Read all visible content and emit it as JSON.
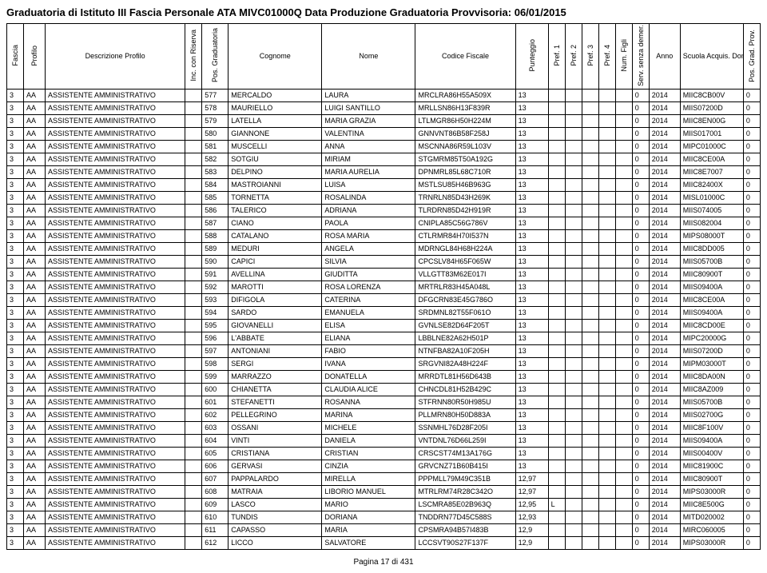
{
  "title": "Graduatoria di Istituto III Fascia Personale ATA MIVC01000Q Data Produzione Graduatoria Provvisoria: 06/01/2015",
  "footer": "Pagina 17 di 431",
  "headers": {
    "fascia": "Fascia",
    "profilo": "Profilo",
    "desc": "Descrizione Profilo",
    "inc": "Inc. con Riserva",
    "pos": "Pos. Graduatoria",
    "cognome": "Cognome",
    "nome": "Nome",
    "cf": "Codice Fiscale",
    "punt": "Punteggio",
    "pref1": "Pref. 1",
    "pref2": "Pref. 2",
    "pref3": "Pref. 3",
    "pref4": "Pref. 4",
    "numf": "Num. Figli",
    "serv": "Serv. senza demer.",
    "anno": "Anno",
    "scuola": "Scuola Acquis. Domanda",
    "posgrad": "Pos. Grad. Prov."
  },
  "rows": [
    {
      "fascia": "3",
      "profilo": "AA",
      "desc": "ASSISTENTE AMMINISTRATIVO",
      "inc": "",
      "pos": "577",
      "cognome": "MERCALDO",
      "nome": "LAURA",
      "cf": "MRCLRA86H55A509X",
      "punt": "13",
      "p1": "",
      "p2": "",
      "p3": "",
      "p4": "",
      "nf": "",
      "sv": "0",
      "anno": "2014",
      "scuola": "MIIC8CB00V",
      "pg": "0"
    },
    {
      "fascia": "3",
      "profilo": "AA",
      "desc": "ASSISTENTE AMMINISTRATIVO",
      "inc": "",
      "pos": "578",
      "cognome": "MAURIELLO",
      "nome": "LUIGI SANTILLO",
      "cf": "MRLLSN86H13F839R",
      "punt": "13",
      "p1": "",
      "p2": "",
      "p3": "",
      "p4": "",
      "nf": "",
      "sv": "0",
      "anno": "2014",
      "scuola": "MIIS07200D",
      "pg": "0"
    },
    {
      "fascia": "3",
      "profilo": "AA",
      "desc": "ASSISTENTE AMMINISTRATIVO",
      "inc": "",
      "pos": "579",
      "cognome": "LATELLA",
      "nome": "MARIA GRAZIA",
      "cf": "LTLMGR86H50H224M",
      "punt": "13",
      "p1": "",
      "p2": "",
      "p3": "",
      "p4": "",
      "nf": "",
      "sv": "0",
      "anno": "2014",
      "scuola": "MIIC8EN00G",
      "pg": "0"
    },
    {
      "fascia": "3",
      "profilo": "AA",
      "desc": "ASSISTENTE AMMINISTRATIVO",
      "inc": "",
      "pos": "580",
      "cognome": "GIANNONE",
      "nome": "VALENTINA",
      "cf": "GNNVNT86B58F258J",
      "punt": "13",
      "p1": "",
      "p2": "",
      "p3": "",
      "p4": "",
      "nf": "",
      "sv": "0",
      "anno": "2014",
      "scuola": "MIIS017001",
      "pg": "0"
    },
    {
      "fascia": "3",
      "profilo": "AA",
      "desc": "ASSISTENTE AMMINISTRATIVO",
      "inc": "",
      "pos": "581",
      "cognome": "MUSCELLI",
      "nome": "ANNA",
      "cf": "MSCNNA86R59L103V",
      "punt": "13",
      "p1": "",
      "p2": "",
      "p3": "",
      "p4": "",
      "nf": "",
      "sv": "0",
      "anno": "2014",
      "scuola": "MIPC01000C",
      "pg": "0"
    },
    {
      "fascia": "3",
      "profilo": "AA",
      "desc": "ASSISTENTE AMMINISTRATIVO",
      "inc": "",
      "pos": "582",
      "cognome": "SOTGIU",
      "nome": "MIRIAM",
      "cf": "STGMRM85T50A192G",
      "punt": "13",
      "p1": "",
      "p2": "",
      "p3": "",
      "p4": "",
      "nf": "",
      "sv": "0",
      "anno": "2014",
      "scuola": "MIIC8CE00A",
      "pg": "0"
    },
    {
      "fascia": "3",
      "profilo": "AA",
      "desc": "ASSISTENTE AMMINISTRATIVO",
      "inc": "",
      "pos": "583",
      "cognome": "DELPINO",
      "nome": "MARIA AURELIA",
      "cf": "DPNMRL85L68C710R",
      "punt": "13",
      "p1": "",
      "p2": "",
      "p3": "",
      "p4": "",
      "nf": "",
      "sv": "0",
      "anno": "2014",
      "scuola": "MIIC8E7007",
      "pg": "0"
    },
    {
      "fascia": "3",
      "profilo": "AA",
      "desc": "ASSISTENTE AMMINISTRATIVO",
      "inc": "",
      "pos": "584",
      "cognome": "MASTROIANNI",
      "nome": "LUISA",
      "cf": "MSTLSU85H46B963G",
      "punt": "13",
      "p1": "",
      "p2": "",
      "p3": "",
      "p4": "",
      "nf": "",
      "sv": "0",
      "anno": "2014",
      "scuola": "MIIC82400X",
      "pg": "0"
    },
    {
      "fascia": "3",
      "profilo": "AA",
      "desc": "ASSISTENTE AMMINISTRATIVO",
      "inc": "",
      "pos": "585",
      "cognome": "TORNETTA",
      "nome": "ROSALINDA",
      "cf": "TRNRLN85D43H269K",
      "punt": "13",
      "p1": "",
      "p2": "",
      "p3": "",
      "p4": "",
      "nf": "",
      "sv": "0",
      "anno": "2014",
      "scuola": "MISL01000C",
      "pg": "0"
    },
    {
      "fascia": "3",
      "profilo": "AA",
      "desc": "ASSISTENTE AMMINISTRATIVO",
      "inc": "",
      "pos": "586",
      "cognome": "TALERICO",
      "nome": "ADRIANA",
      "cf": "TLRDRN85D42H919R",
      "punt": "13",
      "p1": "",
      "p2": "",
      "p3": "",
      "p4": "",
      "nf": "",
      "sv": "0",
      "anno": "2014",
      "scuola": "MIIS074005",
      "pg": "0"
    },
    {
      "fascia": "3",
      "profilo": "AA",
      "desc": "ASSISTENTE AMMINISTRATIVO",
      "inc": "",
      "pos": "587",
      "cognome": "CIANO",
      "nome": "PAOLA",
      "cf": "CNIPLA85C56G786V",
      "punt": "13",
      "p1": "",
      "p2": "",
      "p3": "",
      "p4": "",
      "nf": "",
      "sv": "0",
      "anno": "2014",
      "scuola": "MIIS082004",
      "pg": "0"
    },
    {
      "fascia": "3",
      "profilo": "AA",
      "desc": "ASSISTENTE AMMINISTRATIVO",
      "inc": "",
      "pos": "588",
      "cognome": "CATALANO",
      "nome": "ROSA MARIA",
      "cf": "CTLRMR84H70I537N",
      "punt": "13",
      "p1": "",
      "p2": "",
      "p3": "",
      "p4": "",
      "nf": "",
      "sv": "0",
      "anno": "2014",
      "scuola": "MIPS08000T",
      "pg": "0"
    },
    {
      "fascia": "3",
      "profilo": "AA",
      "desc": "ASSISTENTE AMMINISTRATIVO",
      "inc": "",
      "pos": "589",
      "cognome": "MEDURI",
      "nome": "ANGELA",
      "cf": "MDRNGL84H68H224A",
      "punt": "13",
      "p1": "",
      "p2": "",
      "p3": "",
      "p4": "",
      "nf": "",
      "sv": "0",
      "anno": "2014",
      "scuola": "MIIC8DD005",
      "pg": "0"
    },
    {
      "fascia": "3",
      "profilo": "AA",
      "desc": "ASSISTENTE AMMINISTRATIVO",
      "inc": "",
      "pos": "590",
      "cognome": "CAPICI",
      "nome": "SILVIA",
      "cf": "CPCSLV84H65F065W",
      "punt": "13",
      "p1": "",
      "p2": "",
      "p3": "",
      "p4": "",
      "nf": "",
      "sv": "0",
      "anno": "2014",
      "scuola": "MIIS05700B",
      "pg": "0"
    },
    {
      "fascia": "3",
      "profilo": "AA",
      "desc": "ASSISTENTE AMMINISTRATIVO",
      "inc": "",
      "pos": "591",
      "cognome": "AVELLINA",
      "nome": "GIUDITTA",
      "cf": "VLLGTT83M62E017I",
      "punt": "13",
      "p1": "",
      "p2": "",
      "p3": "",
      "p4": "",
      "nf": "",
      "sv": "0",
      "anno": "2014",
      "scuola": "MIIC80900T",
      "pg": "0"
    },
    {
      "fascia": "3",
      "profilo": "AA",
      "desc": "ASSISTENTE AMMINISTRATIVO",
      "inc": "",
      "pos": "592",
      "cognome": "MAROTTI",
      "nome": "ROSA LORENZA",
      "cf": "MRTRLR83H45A048L",
      "punt": "13",
      "p1": "",
      "p2": "",
      "p3": "",
      "p4": "",
      "nf": "",
      "sv": "0",
      "anno": "2014",
      "scuola": "MIIS09400A",
      "pg": "0"
    },
    {
      "fascia": "3",
      "profilo": "AA",
      "desc": "ASSISTENTE AMMINISTRATIVO",
      "inc": "",
      "pos": "593",
      "cognome": "DIFIGOLA",
      "nome": "CATERINA",
      "cf": "DFGCRN83E45G786O",
      "punt": "13",
      "p1": "",
      "p2": "",
      "p3": "",
      "p4": "",
      "nf": "",
      "sv": "0",
      "anno": "2014",
      "scuola": "MIIC8CE00A",
      "pg": "0"
    },
    {
      "fascia": "3",
      "profilo": "AA",
      "desc": "ASSISTENTE AMMINISTRATIVO",
      "inc": "",
      "pos": "594",
      "cognome": "SARDO",
      "nome": "EMANUELA",
      "cf": "SRDMNL82T55F061O",
      "punt": "13",
      "p1": "",
      "p2": "",
      "p3": "",
      "p4": "",
      "nf": "",
      "sv": "0",
      "anno": "2014",
      "scuola": "MIIS09400A",
      "pg": "0"
    },
    {
      "fascia": "3",
      "profilo": "AA",
      "desc": "ASSISTENTE AMMINISTRATIVO",
      "inc": "",
      "pos": "595",
      "cognome": "GIOVANELLI",
      "nome": "ELISA",
      "cf": "GVNLSE82D64F205T",
      "punt": "13",
      "p1": "",
      "p2": "",
      "p3": "",
      "p4": "",
      "nf": "",
      "sv": "0",
      "anno": "2014",
      "scuola": "MIIC8CD00E",
      "pg": "0"
    },
    {
      "fascia": "3",
      "profilo": "AA",
      "desc": "ASSISTENTE AMMINISTRATIVO",
      "inc": "",
      "pos": "596",
      "cognome": "L'ABBATE",
      "nome": "ELIANA",
      "cf": "LBBLNE82A62H501P",
      "punt": "13",
      "p1": "",
      "p2": "",
      "p3": "",
      "p4": "",
      "nf": "",
      "sv": "0",
      "anno": "2014",
      "scuola": "MIPC20000G",
      "pg": "0"
    },
    {
      "fascia": "3",
      "profilo": "AA",
      "desc": "ASSISTENTE AMMINISTRATIVO",
      "inc": "",
      "pos": "597",
      "cognome": "ANTONIANI",
      "nome": "FABIO",
      "cf": "NTNFBA82A10F205H",
      "punt": "13",
      "p1": "",
      "p2": "",
      "p3": "",
      "p4": "",
      "nf": "",
      "sv": "0",
      "anno": "2014",
      "scuola": "MIIS07200D",
      "pg": "0"
    },
    {
      "fascia": "3",
      "profilo": "AA",
      "desc": "ASSISTENTE AMMINISTRATIVO",
      "inc": "",
      "pos": "598",
      "cognome": "SERGI",
      "nome": "IVANA",
      "cf": "SRGVNI82A48H224F",
      "punt": "13",
      "p1": "",
      "p2": "",
      "p3": "",
      "p4": "",
      "nf": "",
      "sv": "0",
      "anno": "2014",
      "scuola": "MIPM03000T",
      "pg": "0"
    },
    {
      "fascia": "3",
      "profilo": "AA",
      "desc": "ASSISTENTE AMMINISTRATIVO",
      "inc": "",
      "pos": "599",
      "cognome": "MARRAZZO",
      "nome": "DONATELLA",
      "cf": "MRRDTL81H56D643B",
      "punt": "13",
      "p1": "",
      "p2": "",
      "p3": "",
      "p4": "",
      "nf": "",
      "sv": "0",
      "anno": "2014",
      "scuola": "MIIC8DA00N",
      "pg": "0"
    },
    {
      "fascia": "3",
      "profilo": "AA",
      "desc": "ASSISTENTE AMMINISTRATIVO",
      "inc": "",
      "pos": "600",
      "cognome": "CHIANETTA",
      "nome": "CLAUDIA ALICE",
      "cf": "CHNCDL81H52B429C",
      "punt": "13",
      "p1": "",
      "p2": "",
      "p3": "",
      "p4": "",
      "nf": "",
      "sv": "0",
      "anno": "2014",
      "scuola": "MIIC8AZ009",
      "pg": "0"
    },
    {
      "fascia": "3",
      "profilo": "AA",
      "desc": "ASSISTENTE AMMINISTRATIVO",
      "inc": "",
      "pos": "601",
      "cognome": "STEFANETTI",
      "nome": "ROSANNA",
      "cf": "STFRNN80R50H985U",
      "punt": "13",
      "p1": "",
      "p2": "",
      "p3": "",
      "p4": "",
      "nf": "",
      "sv": "0",
      "anno": "2014",
      "scuola": "MIIS05700B",
      "pg": "0"
    },
    {
      "fascia": "3",
      "profilo": "AA",
      "desc": "ASSISTENTE AMMINISTRATIVO",
      "inc": "",
      "pos": "602",
      "cognome": "PELLEGRINO",
      "nome": "MARINA",
      "cf": "PLLMRN80H50D883A",
      "punt": "13",
      "p1": "",
      "p2": "",
      "p3": "",
      "p4": "",
      "nf": "",
      "sv": "0",
      "anno": "2014",
      "scuola": "MIIS02700G",
      "pg": "0"
    },
    {
      "fascia": "3",
      "profilo": "AA",
      "desc": "ASSISTENTE AMMINISTRATIVO",
      "inc": "",
      "pos": "603",
      "cognome": "OSSANI",
      "nome": "MICHELE",
      "cf": "SSNMHL76D28F205I",
      "punt": "13",
      "p1": "",
      "p2": "",
      "p3": "",
      "p4": "",
      "nf": "",
      "sv": "0",
      "anno": "2014",
      "scuola": "MIIC8F100V",
      "pg": "0"
    },
    {
      "fascia": "3",
      "profilo": "AA",
      "desc": "ASSISTENTE AMMINISTRATIVO",
      "inc": "",
      "pos": "604",
      "cognome": "VINTI",
      "nome": "DANIELA",
      "cf": "VNTDNL76D66L259I",
      "punt": "13",
      "p1": "",
      "p2": "",
      "p3": "",
      "p4": "",
      "nf": "",
      "sv": "0",
      "anno": "2014",
      "scuola": "MIIS09400A",
      "pg": "0"
    },
    {
      "fascia": "3",
      "profilo": "AA",
      "desc": "ASSISTENTE AMMINISTRATIVO",
      "inc": "",
      "pos": "605",
      "cognome": "CRISTIANA",
      "nome": "CRISTIAN",
      "cf": "CRSCST74M13A176G",
      "punt": "13",
      "p1": "",
      "p2": "",
      "p3": "",
      "p4": "",
      "nf": "",
      "sv": "0",
      "anno": "2014",
      "scuola": "MIIS00400V",
      "pg": "0"
    },
    {
      "fascia": "3",
      "profilo": "AA",
      "desc": "ASSISTENTE AMMINISTRATIVO",
      "inc": "",
      "pos": "606",
      "cognome": "GERVASI",
      "nome": "CINZIA",
      "cf": "GRVCNZ71B60B415I",
      "punt": "13",
      "p1": "",
      "p2": "",
      "p3": "",
      "p4": "",
      "nf": "",
      "sv": "0",
      "anno": "2014",
      "scuola": "MIIC81900C",
      "pg": "0"
    },
    {
      "fascia": "3",
      "profilo": "AA",
      "desc": "ASSISTENTE AMMINISTRATIVO",
      "inc": "",
      "pos": "607",
      "cognome": "PAPPALARDO",
      "nome": "MIRELLA",
      "cf": "PPPMLL79M49C351B",
      "punt": "12,97",
      "p1": "",
      "p2": "",
      "p3": "",
      "p4": "",
      "nf": "",
      "sv": "0",
      "anno": "2014",
      "scuola": "MIIC80900T",
      "pg": "0"
    },
    {
      "fascia": "3",
      "profilo": "AA",
      "desc": "ASSISTENTE AMMINISTRATIVO",
      "inc": "",
      "pos": "608",
      "cognome": "MATRAIA",
      "nome": "LIBORIO MANUEL",
      "cf": "MTRLRM74R28C342O",
      "punt": "12,97",
      "p1": "",
      "p2": "",
      "p3": "",
      "p4": "",
      "nf": "",
      "sv": "0",
      "anno": "2014",
      "scuola": "MIPS03000R",
      "pg": "0"
    },
    {
      "fascia": "3",
      "profilo": "AA",
      "desc": "ASSISTENTE AMMINISTRATIVO",
      "inc": "",
      "pos": "609",
      "cognome": "LASCO",
      "nome": "MARIO",
      "cf": "LSCMRA85E02B963Q",
      "punt": "12,95",
      "p1": "L",
      "p2": "",
      "p3": "",
      "p4": "",
      "nf": "",
      "sv": "0",
      "anno": "2014",
      "scuola": "MIIC8E500G",
      "pg": "0"
    },
    {
      "fascia": "3",
      "profilo": "AA",
      "desc": "ASSISTENTE AMMINISTRATIVO",
      "inc": "",
      "pos": "610",
      "cognome": "TUNDIS",
      "nome": "DORIANA",
      "cf": "TNDDRN77D45C588S",
      "punt": "12,93",
      "p1": "",
      "p2": "",
      "p3": "",
      "p4": "",
      "nf": "",
      "sv": "0",
      "anno": "2014",
      "scuola": "MITD020002",
      "pg": "0"
    },
    {
      "fascia": "3",
      "profilo": "AA",
      "desc": "ASSISTENTE AMMINISTRATIVO",
      "inc": "",
      "pos": "611",
      "cognome": "CAPASSO",
      "nome": "MARIA",
      "cf": "CPSMRA94B57I483B",
      "punt": "12,9",
      "p1": "",
      "p2": "",
      "p3": "",
      "p4": "",
      "nf": "",
      "sv": "0",
      "anno": "2014",
      "scuola": "MIRC060005",
      "pg": "0"
    },
    {
      "fascia": "3",
      "profilo": "AA",
      "desc": "ASSISTENTE AMMINISTRATIVO",
      "inc": "",
      "pos": "612",
      "cognome": "LICCO",
      "nome": "SALVATORE",
      "cf": "LCCSVT90S27F137F",
      "punt": "12,9",
      "p1": "",
      "p2": "",
      "p3": "",
      "p4": "",
      "nf": "",
      "sv": "0",
      "anno": "2014",
      "scuola": "MIPS03000R",
      "pg": "0"
    }
  ]
}
